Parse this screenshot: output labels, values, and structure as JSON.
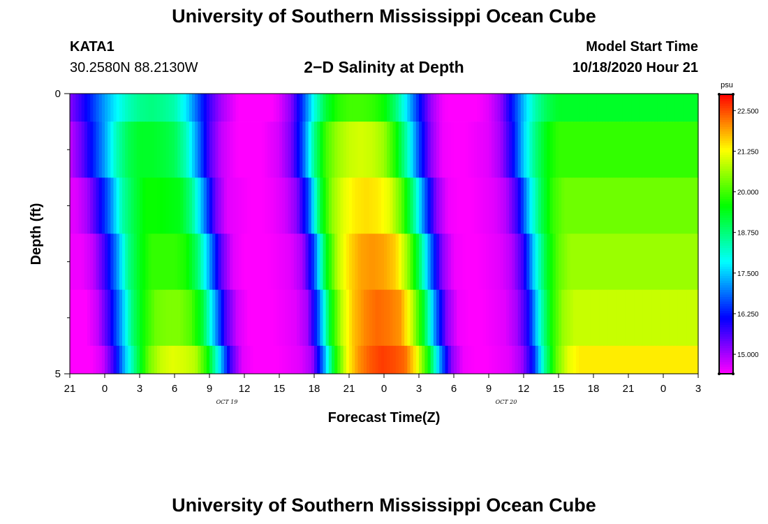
{
  "header": {
    "title": "University of Southern Mississippi Ocean Cube",
    "station_id": "KATA1",
    "coordinates": "30.2580N 88.2130W",
    "plot_title": "2−D Salinity at Depth",
    "model_start_label": "Model Start Time",
    "model_start_value": "10/18/2020 Hour 21"
  },
  "footer": {
    "title": "University of Southern Mississippi Ocean Cube"
  },
  "chart_data": {
    "type": "heatmap",
    "title": "2−D Salinity at Depth",
    "xlabel": "Forecast Time(Z)",
    "ylabel": "Depth (ft)",
    "x_ticks": [
      "21",
      "0",
      "3",
      "6",
      "9",
      "12",
      "15",
      "18",
      "21",
      "0",
      "3",
      "6",
      "9",
      "12",
      "15",
      "18",
      "21",
      "0",
      "3"
    ],
    "x_day_labels": [
      {
        "label": "OCT 19",
        "tick_index": 4.5
      },
      {
        "label": "OCT 20",
        "tick_index": 12.5
      }
    ],
    "x_range_hours": [
      0,
      54
    ],
    "y_ticks": [
      "0",
      "5"
    ],
    "ylim": [
      0,
      5
    ],
    "y_minor_ticks": [
      1,
      2,
      3,
      4
    ],
    "depth_rows": [
      {
        "depth_range": [
          0,
          0.5
        ],
        "onset_offset_hours": 0
      },
      {
        "depth_range": [
          0.5,
          1.5
        ],
        "onset_offset_hours": 0
      },
      {
        "depth_range": [
          1.5,
          2.5
        ],
        "onset_offset_hours": 0.5
      },
      {
        "depth_range": [
          2.5,
          3.5
        ],
        "onset_offset_hours": 1.0
      },
      {
        "depth_range": [
          3.5,
          4.5
        ],
        "onset_offset_hours": 1.4
      },
      {
        "depth_range": [
          4.5,
          5
        ],
        "onset_offset_hours": 1.8
      }
    ],
    "time_profile": [
      {
        "h": 0,
        "row_values": [
          15.2,
          14.8,
          14.6,
          14.5,
          14.4,
          14.4
        ]
      },
      {
        "h": 1,
        "row_values": [
          15.8,
          15.4,
          15.0,
          14.8,
          14.8,
          14.7
        ]
      },
      {
        "h": 2,
        "row_values": [
          16.5,
          16.3,
          15.9,
          15.7,
          15.8,
          15.8
        ]
      },
      {
        "h": 3,
        "row_values": [
          17.2,
          17.2,
          17.0,
          17.0,
          17.2,
          17.5
        ]
      },
      {
        "h": 4,
        "row_values": [
          17.8,
          18.3,
          18.4,
          18.6,
          18.8,
          19.0
        ]
      },
      {
        "h": 5,
        "row_values": [
          18.3,
          19.0,
          19.1,
          19.4,
          19.7,
          20.3
        ]
      },
      {
        "h": 6,
        "row_values": [
          18.6,
          19.3,
          19.6,
          19.9,
          20.3,
          20.9
        ]
      },
      {
        "h": 7,
        "row_values": [
          18.7,
          19.3,
          19.6,
          19.9,
          20.4,
          21.1
        ]
      },
      {
        "h": 8,
        "row_values": [
          18.6,
          19.2,
          19.5,
          19.9,
          20.4,
          21.0
        ]
      },
      {
        "h": 9,
        "row_values": [
          18.4,
          19.0,
          19.4,
          19.7,
          20.1,
          20.8
        ]
      },
      {
        "h": 10,
        "row_values": [
          17.7,
          18.3,
          18.6,
          18.8,
          19.2,
          19.7
        ]
      },
      {
        "h": 11,
        "row_values": [
          16.7,
          17.0,
          17.1,
          17.2,
          17.4,
          17.8
        ]
      },
      {
        "h": 12,
        "row_values": [
          15.7,
          15.6,
          15.4,
          15.5,
          15.6,
          15.7
        ]
      },
      {
        "h": 13,
        "row_values": [
          15.0,
          14.8,
          14.6,
          14.6,
          14.7,
          14.6
        ]
      },
      {
        "h": 14,
        "row_values": [
          14.6,
          14.5,
          14.5,
          14.4,
          14.4,
          14.4
        ]
      },
      {
        "h": 15,
        "row_values": [
          14.2,
          14.3,
          14.4,
          14.4,
          14.4,
          14.4
        ]
      },
      {
        "h": 16,
        "row_values": [
          14.1,
          14.3,
          14.4,
          14.4,
          14.4,
          14.4
        ]
      },
      {
        "h": 17,
        "row_values": [
          14.3,
          14.5,
          14.5,
          14.5,
          14.5,
          14.5
        ]
      },
      {
        "h": 18,
        "row_values": [
          14.6,
          14.7,
          14.7,
          14.6,
          14.6,
          14.6
        ]
      },
      {
        "h": 19,
        "row_values": [
          15.2,
          15.3,
          15.2,
          15.0,
          15.0,
          15.0
        ]
      },
      {
        "h": 20,
        "row_values": [
          16.5,
          16.6,
          16.6,
          16.6,
          16.8,
          17.0
        ]
      },
      {
        "h": 21,
        "row_values": [
          18.0,
          18.6,
          19.1,
          19.3,
          19.4,
          19.6
        ]
      },
      {
        "h": 22,
        "row_values": [
          19.2,
          20.0,
          20.5,
          20.8,
          20.9,
          21.2
        ]
      },
      {
        "h": 23,
        "row_values": [
          19.8,
          20.6,
          21.1,
          21.5,
          21.7,
          22.0
        ]
      },
      {
        "h": 24,
        "row_values": [
          20.0,
          20.9,
          21.4,
          21.9,
          22.1,
          22.4
        ]
      },
      {
        "h": 25,
        "row_values": [
          20.0,
          21.0,
          21.5,
          22.0,
          22.3,
          22.6
        ]
      },
      {
        "h": 26,
        "row_values": [
          19.9,
          20.9,
          21.4,
          21.9,
          22.2,
          22.5
        ]
      },
      {
        "h": 27,
        "row_values": [
          19.6,
          20.6,
          21.1,
          21.6,
          22.0,
          22.3
        ]
      },
      {
        "h": 28,
        "row_values": [
          18.8,
          19.7,
          20.2,
          20.6,
          20.9,
          21.3
        ]
      },
      {
        "h": 29,
        "row_values": [
          17.6,
          18.3,
          18.7,
          19.0,
          19.3,
          19.6
        ]
      },
      {
        "h": 30,
        "row_values": [
          16.3,
          16.6,
          16.8,
          16.9,
          17.0,
          17.2
        ]
      },
      {
        "h": 31,
        "row_values": [
          15.1,
          15.2,
          15.2,
          15.2,
          15.2,
          15.2
        ]
      },
      {
        "h": 32,
        "row_values": [
          14.5,
          14.5,
          14.5,
          14.5,
          14.5,
          14.5
        ]
      },
      {
        "h": 33,
        "row_values": [
          14.3,
          14.4,
          14.4,
          14.4,
          14.4,
          14.4
        ]
      },
      {
        "h": 34,
        "row_values": [
          14.3,
          14.4,
          14.4,
          14.4,
          14.4,
          14.4
        ]
      },
      {
        "h": 35,
        "row_values": [
          14.4,
          14.5,
          14.5,
          14.5,
          14.5,
          14.5
        ]
      },
      {
        "h": 36,
        "row_values": [
          14.6,
          14.6,
          14.6,
          14.6,
          14.6,
          14.6
        ]
      },
      {
        "h": 37,
        "row_values": [
          15.1,
          15.0,
          14.9,
          14.9,
          15.0,
          15.0
        ]
      },
      {
        "h": 38,
        "row_values": [
          16.2,
          16.0,
          15.8,
          15.8,
          16.0,
          16.2
        ]
      },
      {
        "h": 39,
        "row_values": [
          17.4,
          17.5,
          17.6,
          17.8,
          18.1,
          18.5
        ]
      },
      {
        "h": 40,
        "row_values": [
          18.4,
          18.7,
          19.0,
          19.3,
          19.7,
          20.2
        ]
      },
      {
        "h": 41,
        "row_values": [
          19.0,
          19.5,
          19.9,
          20.2,
          20.6,
          21.1
        ]
      },
      {
        "h": 42,
        "row_values": [
          19.3,
          19.9,
          20.3,
          20.6,
          20.9,
          21.4
        ]
      }
    ],
    "colorbar": {
      "unit": "psu",
      "ticks": [
        15.0,
        16.25,
        17.5,
        18.75,
        20.0,
        21.25,
        22.5
      ],
      "tick_labels": [
        "15.000",
        "16.250",
        "17.500",
        "18.750",
        "20.000",
        "21.250",
        "22.500"
      ],
      "range": [
        14.4,
        23.0
      ]
    },
    "grid": false
  }
}
